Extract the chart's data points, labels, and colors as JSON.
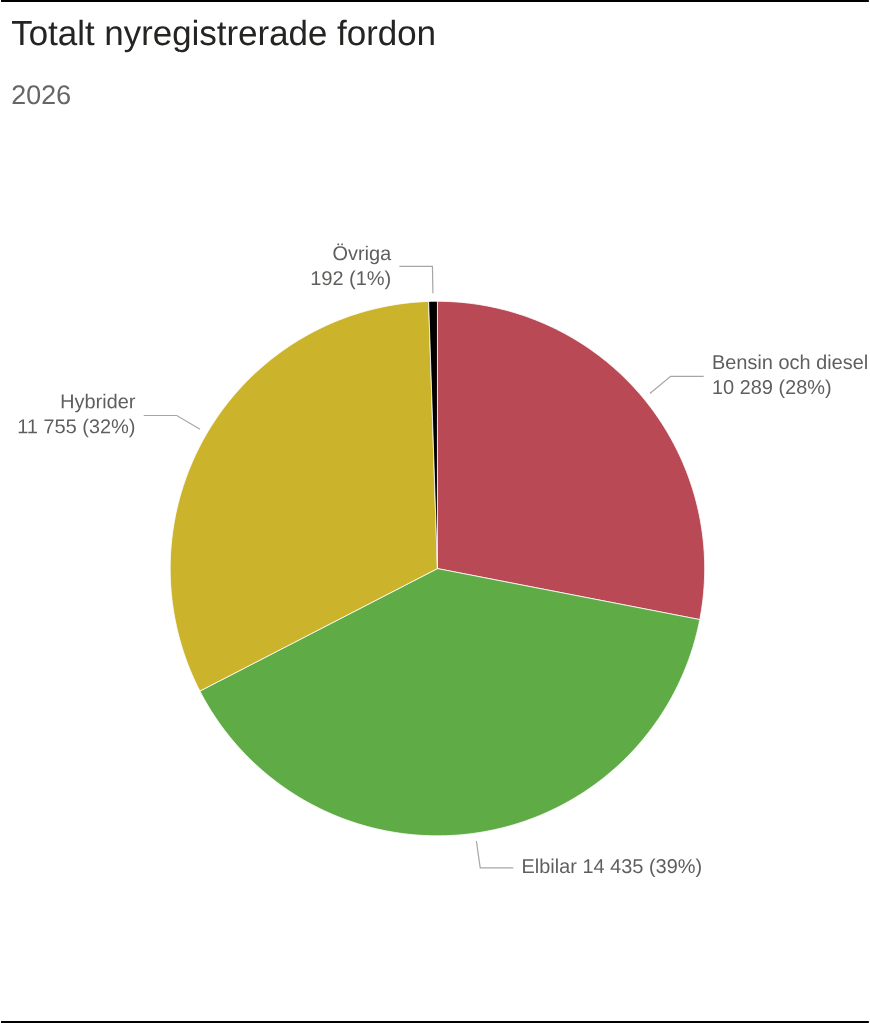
{
  "chart_data": {
    "type": "pie",
    "title": "Totalt nyregistrerade fordon",
    "subtitle": "2026",
    "categories": [
      "Bensin och diesel",
      "Elbilar",
      "Hybrider",
      "Övriga"
    ],
    "values": [
      10289,
      14435,
      11755,
      192
    ],
    "colors": [
      "#b94a55",
      "#5fab45",
      "#cbb42b",
      "#000000"
    ],
    "value_labels": [
      "10 289 (28%)",
      "14 435 (39%)",
      "11 755 (32%)",
      "192 (1%)"
    ]
  }
}
